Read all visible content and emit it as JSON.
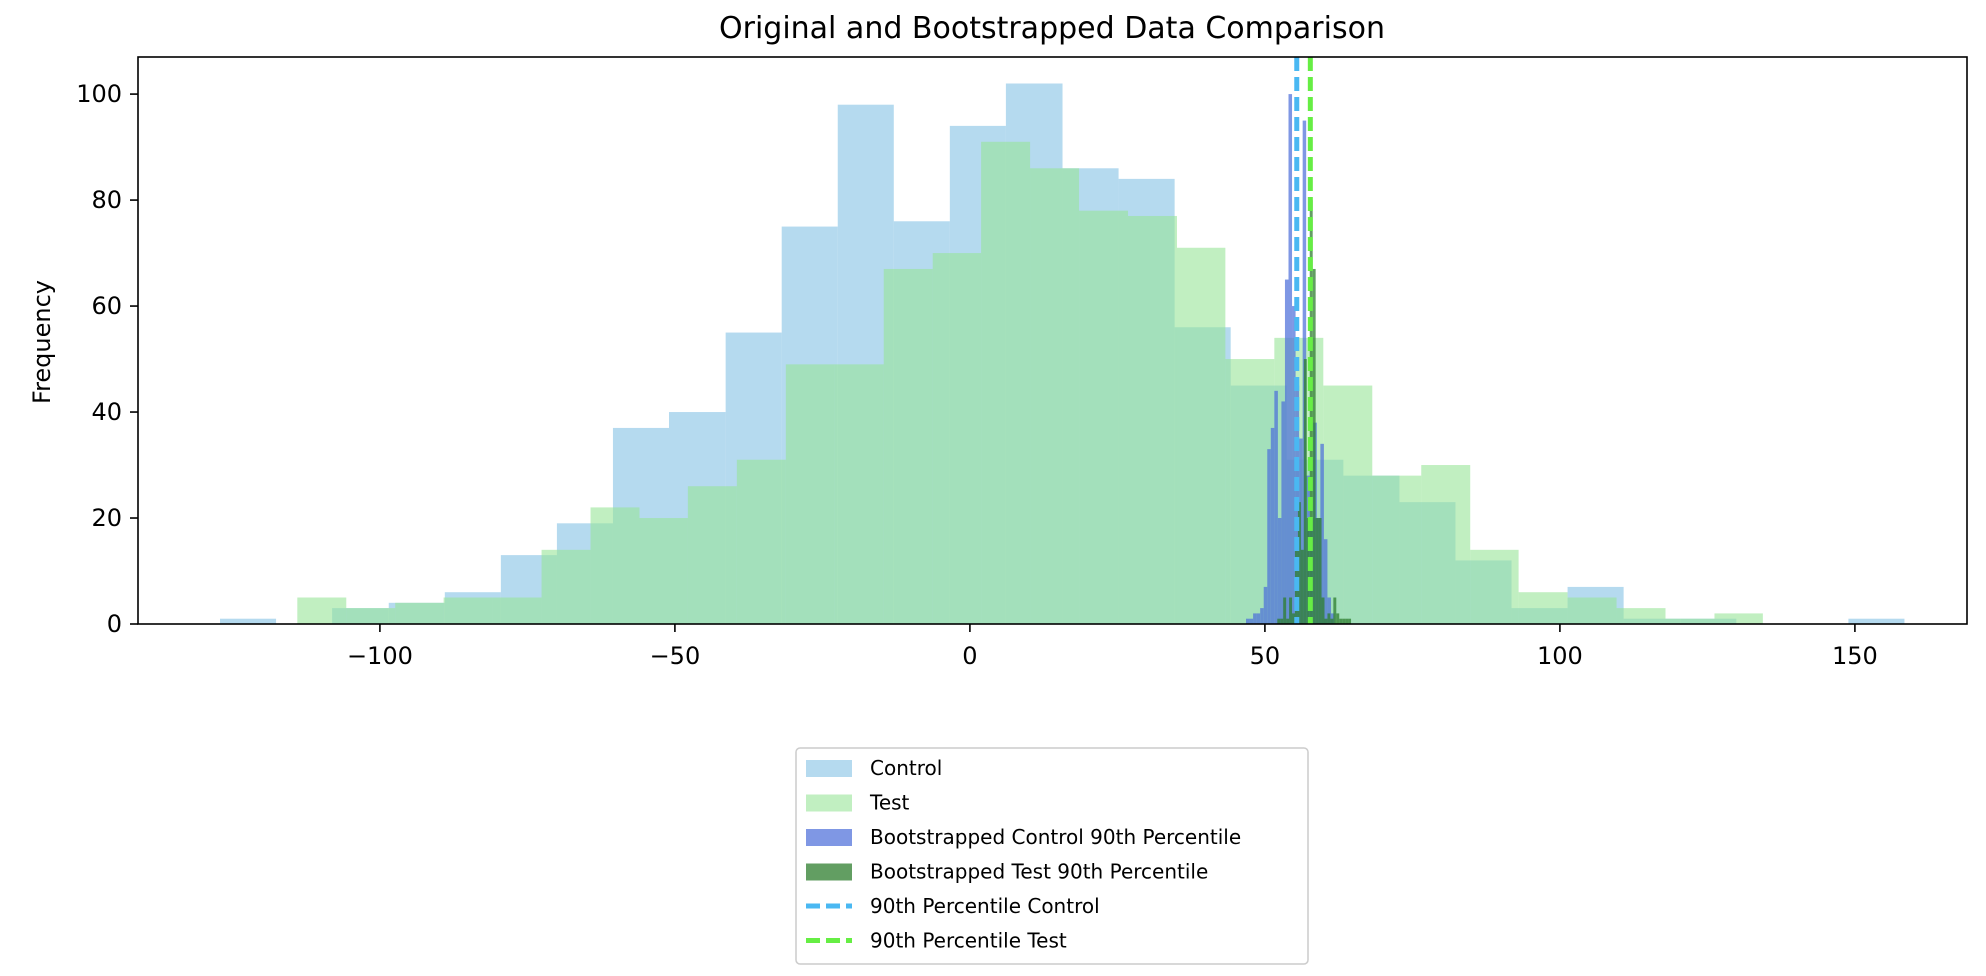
{
  "chart_data": {
    "type": "bar",
    "title": "Original and Bootstrapped Data Comparison",
    "xlabel": "",
    "ylabel": "Frequency",
    "xlim": [
      -141,
      169
    ],
    "ylim": [
      0,
      107
    ],
    "x_ticks": [
      -100,
      -50,
      0,
      50,
      100,
      150
    ],
    "x_tick_labels": [
      "−100",
      "−50",
      "0",
      "50",
      "100",
      "150"
    ],
    "y_ticks": [
      0,
      20,
      40,
      60,
      80,
      100
    ],
    "y_tick_labels": [
      "0",
      "20",
      "40",
      "60",
      "80",
      "100"
    ],
    "grid": false,
    "legend_position": "bottom-center",
    "series": [
      {
        "name": "Control",
        "kind": "histogram",
        "color": "#8ec6e6",
        "opacity": 0.65,
        "bin_edges": [
          -127.1,
          -117.6,
          -108.1,
          -98.5,
          -89.0,
          -79.5,
          -70.0,
          -60.5,
          -51.0,
          -41.4,
          -31.9,
          -22.4,
          -12.9,
          -3.4,
          6.1,
          15.7,
          25.2,
          34.7,
          44.2,
          53.7,
          63.3,
          72.8,
          82.3,
          91.8,
          101.3,
          110.8,
          120.4,
          129.9,
          139.4,
          148.9,
          158.4
        ],
        "values": [
          1,
          0,
          3,
          4,
          6,
          13,
          19,
          37,
          40,
          55,
          75,
          98,
          76,
          94,
          102,
          86,
          84,
          56,
          45,
          31,
          28,
          23,
          12,
          3,
          7,
          1,
          1,
          0,
          0,
          1
        ]
      },
      {
        "name": "Test",
        "kind": "histogram",
        "color": "#98e598",
        "opacity": 0.6,
        "bin_edges": [
          -114.0,
          -105.7,
          -97.4,
          -89.2,
          -80.9,
          -72.6,
          -64.3,
          -56.0,
          -47.8,
          -39.5,
          -31.2,
          -22.9,
          -14.6,
          -6.3,
          1.9,
          10.2,
          18.5,
          26.8,
          35.1,
          43.3,
          51.6,
          59.9,
          68.2,
          76.5,
          84.8,
          93.0,
          101.3,
          109.6,
          117.9,
          126.2,
          134.4
        ],
        "values": [
          5,
          3,
          4,
          5,
          5,
          14,
          22,
          20,
          26,
          31,
          49,
          49,
          67,
          70,
          91,
          86,
          78,
          77,
          71,
          50,
          54,
          45,
          28,
          30,
          14,
          6,
          5,
          3,
          1,
          2
        ]
      },
      {
        "name": "Bootstrapped Control 90th Percentile",
        "kind": "histogram",
        "color": "#4d6fd9",
        "opacity": 0.72,
        "bin_edges": [
          46.8,
          47.4,
          48.0,
          48.6,
          49.2,
          49.8,
          50.4,
          51.0,
          51.6,
          52.2,
          52.8,
          53.4,
          54.0,
          54.6,
          55.2,
          55.8,
          56.4,
          57.0,
          57.6,
          58.2,
          58.8,
          59.4,
          60.0,
          60.6,
          61.2,
          61.8
        ],
        "values": [
          1,
          1,
          2,
          2,
          3,
          7,
          33,
          37,
          44,
          20,
          42,
          65,
          100,
          60,
          45,
          35,
          95,
          28,
          20,
          38,
          20,
          34,
          16,
          5,
          2
        ]
      },
      {
        "name": "Bootstrapped Test 90th Percentile",
        "kind": "histogram",
        "color": "#2e7d2e",
        "opacity": 0.75,
        "bin_edges": [
          52.1,
          52.6,
          53.1,
          53.6,
          54.1,
          54.6,
          55.1,
          55.6,
          56.1,
          56.6,
          57.1,
          57.6,
          58.1,
          58.6,
          59.1,
          59.6,
          60.1,
          60.6,
          61.1,
          61.6,
          62.1,
          62.6,
          63.1,
          63.6,
          64.1,
          64.6
        ],
        "values": [
          1,
          1,
          5,
          1,
          5,
          2,
          14,
          23,
          14,
          50,
          20,
          80,
          67,
          20,
          20,
          5,
          1,
          2,
          1,
          5,
          2,
          1,
          1,
          1,
          1
        ]
      },
      {
        "name": "90th Percentile Control",
        "kind": "vline",
        "color": "#4ab8f2",
        "x": 55.4
      },
      {
        "name": "90th Percentile Test",
        "kind": "vline",
        "color": "#66ee44",
        "x": 57.7
      }
    ]
  }
}
